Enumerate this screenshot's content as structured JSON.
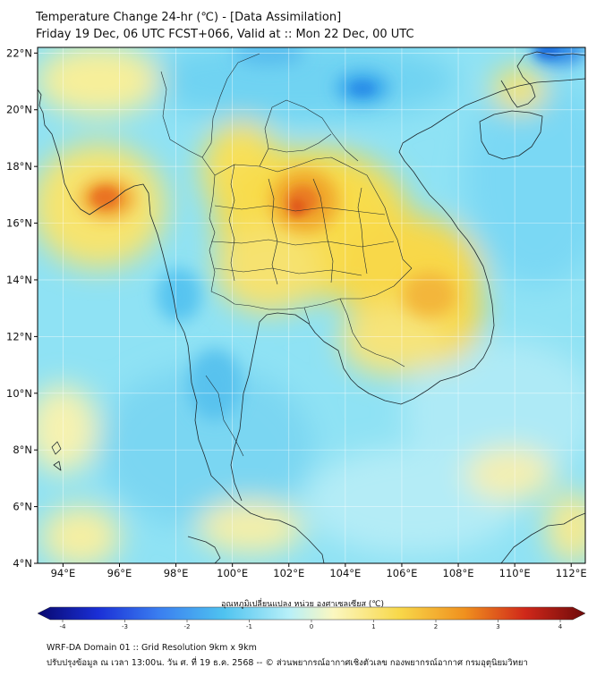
{
  "header": {
    "title": "Temperature Change 24-hr (℃) - [Data Assimilation]",
    "subtitle": "Friday 19 Dec, 06 UTC FCST+066, Valid at :: Mon 22 Dec, 00 UTC"
  },
  "map": {
    "lat_ticks": [
      "22°N",
      "20°N",
      "18°N",
      "16°N",
      "14°N",
      "12°N",
      "10°N",
      "8°N",
      "6°N",
      "4°N"
    ],
    "lon_ticks": [
      "94°E",
      "96°E",
      "98°E",
      "100°E",
      "102°E",
      "104°E",
      "106°E",
      "108°E",
      "110°E",
      "112°E"
    ],
    "lat_range": [
      4,
      22.2
    ],
    "lon_range": [
      93.1,
      112.5
    ],
    "hotspots": [
      {
        "lon": 95.6,
        "lat": 16.8,
        "value": 2.0
      },
      {
        "lon": 102.5,
        "lat": 16.7,
        "value": 2.4
      },
      {
        "lon": 101.8,
        "lat": 16.0,
        "value": 1.8
      },
      {
        "lon": 107.0,
        "lat": 13.5,
        "value": 1.4
      },
      {
        "lon": 110.5,
        "lat": 21.1,
        "value": 0.9
      },
      {
        "lon": 104.8,
        "lat": 20.7,
        "value": -1.6
      },
      {
        "lon": 111.5,
        "lat": 22.0,
        "value": -2.0
      }
    ]
  },
  "colorbar": {
    "label": "อุณหภูมิเปลี่ยนแปลง หน่วย องศาเซลเซียส (℃)",
    "ticks": [
      "-4",
      "-3",
      "-2",
      "-1",
      "0",
      "1",
      "2",
      "3",
      "4"
    ],
    "min": -4,
    "max": 4,
    "colors": [
      "#08086e",
      "#1a2fd6",
      "#3a7df0",
      "#4fc3f0",
      "#b8f0f8",
      "#fbf7c0",
      "#f8d84a",
      "#f0901e",
      "#d0281a",
      "#6e0a0a"
    ]
  },
  "footer": {
    "line1": "WRF-DA Domain 01 :: Grid Resolution 9km x 9km",
    "line2": "ปรับปรุงข้อมูล ณ เวลา 13:00น. วัน ศ. ที่ 19 ธ.ค. 2568 -- © ส่วนพยากรณ์อากาศเชิงตัวเลข กองพยากรณ์อากาศ กรมอุตุนิยมวิทยา"
  }
}
